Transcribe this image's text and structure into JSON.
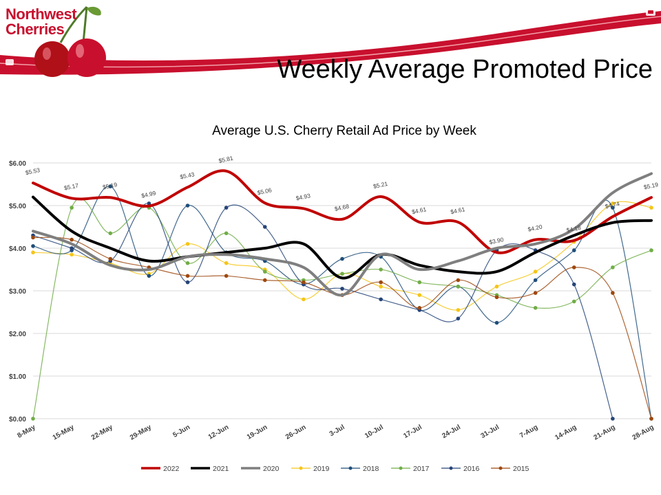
{
  "slide": {
    "logo_line1": "Northwest",
    "logo_line2": "Cherries",
    "title": "Weekly Average Promoted Price"
  },
  "colors": {
    "brand_red": "#c8102e"
  },
  "chart_data": {
    "type": "line",
    "title": "Average U.S. Cherry Retail Ad Price by Week",
    "xlabel": "",
    "ylabel": "",
    "categories": [
      "8-May",
      "15-May",
      "22-May",
      "29-May",
      "5-Jun",
      "12-Jun",
      "19-Jun",
      "26-Jun",
      "3-Jul",
      "10-Jul",
      "17-Jul",
      "24-Jul",
      "31-Jul",
      "7-Aug",
      "14-Aug",
      "21-Aug",
      "28-Aug"
    ],
    "y_ticks": [
      "$0.00",
      "$1.00",
      "$2.00",
      "$3.00",
      "$4.00",
      "$5.00",
      "$6.00"
    ],
    "ylim": [
      0,
      6
    ],
    "grid": true,
    "legend_position": "bottom",
    "series": [
      {
        "name": "2022",
        "color": "#c00000",
        "width": 4,
        "markers": false,
        "values": [
          5.53,
          5.17,
          5.19,
          4.99,
          5.43,
          5.81,
          5.06,
          4.93,
          4.68,
          5.21,
          4.61,
          4.61,
          3.9,
          4.2,
          4.18,
          4.74,
          5.19
        ],
        "data_labels": [
          "$5.53",
          "$5.17",
          "$5.19",
          "$4.99",
          "$5.43",
          "$5.81",
          "$5.06",
          "$4.93",
          "$4.68",
          "$5.21",
          "$4.61",
          "$4.61",
          "$3.90",
          "$4.20",
          "$4.18",
          "$4.74",
          "$5.19"
        ]
      },
      {
        "name": "2021",
        "color": "#000000",
        "width": 4,
        "markers": false,
        "values": [
          5.2,
          4.4,
          4.0,
          3.7,
          3.8,
          3.9,
          4.0,
          4.1,
          3.3,
          3.85,
          3.6,
          3.45,
          3.45,
          3.9,
          4.3,
          4.6,
          4.65
        ]
      },
      {
        "name": "2020",
        "color": "#7f7f7f",
        "width": 4,
        "markers": false,
        "values": [
          4.4,
          4.1,
          3.6,
          3.5,
          3.8,
          3.85,
          3.75,
          3.55,
          2.9,
          3.85,
          3.5,
          3.7,
          4.0,
          4.1,
          4.45,
          5.3,
          5.75
        ]
      },
      {
        "name": "2019",
        "color": "#f5c518",
        "width": 1.2,
        "markers": true,
        "values": [
          3.9,
          3.85,
          3.65,
          3.4,
          4.1,
          3.65,
          3.5,
          2.8,
          3.4,
          3.1,
          2.9,
          2.55,
          3.1,
          3.45,
          4.15,
          5.05,
          4.95
        ]
      },
      {
        "name": "2018",
        "color": "#1f4e79",
        "width": 1.2,
        "markers": true,
        "values": [
          4.05,
          3.95,
          5.45,
          3.35,
          5.0,
          3.9,
          3.7,
          3.15,
          3.75,
          3.8,
          2.55,
          3.1,
          2.25,
          3.25,
          3.95,
          4.95,
          0
        ]
      },
      {
        "name": "2017",
        "color": "#70ad47",
        "width": 1.2,
        "markers": true,
        "values": [
          0,
          4.95,
          4.35,
          4.95,
          3.65,
          4.35,
          3.45,
          3.25,
          3.4,
          3.5,
          3.2,
          3.1,
          2.9,
          2.6,
          2.75,
          3.55,
          3.95
        ]
      },
      {
        "name": "2016",
        "color": "#264478",
        "width": 1.2,
        "markers": true,
        "values": [
          4.3,
          4.0,
          3.7,
          5.05,
          3.2,
          4.95,
          4.5,
          3.15,
          3.05,
          2.8,
          2.55,
          2.35,
          3.95,
          3.95,
          3.15,
          0,
          null
        ]
      },
      {
        "name": "2015",
        "color": "#9e480e",
        "width": 1.2,
        "markers": true,
        "values": [
          4.25,
          4.2,
          3.75,
          3.55,
          3.35,
          3.35,
          3.25,
          3.2,
          2.9,
          3.2,
          2.6,
          3.25,
          2.85,
          2.95,
          3.55,
          2.95,
          0
        ]
      }
    ]
  }
}
